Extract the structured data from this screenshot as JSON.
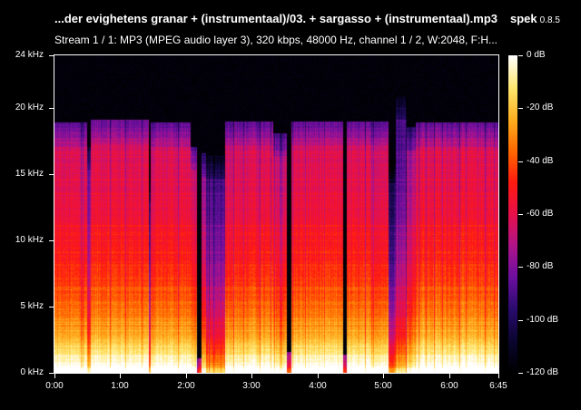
{
  "header": {
    "title": "...der evighetens granar + (instrumentaal)/03. + sargasso + (instrumentaal).mp3",
    "app_name": "spek",
    "app_version": "0.8.5",
    "subtitle": "Stream 1 / 1: MP3 (MPEG audio layer 3), 320 kbps, 48000 Hz, channel 1 / 2, W:2048, F:H..."
  },
  "y_axis": {
    "ticks": [
      {
        "label": "24 kHz",
        "value": 24
      },
      {
        "label": "20 kHz",
        "value": 20
      },
      {
        "label": "15 kHz",
        "value": 15
      },
      {
        "label": "10 kHz",
        "value": 10
      },
      {
        "label": "5 kHz",
        "value": 5
      },
      {
        "label": "0 kHz",
        "value": 0
      }
    ],
    "max_khz": 24
  },
  "x_axis": {
    "ticks": [
      {
        "label": "0:00",
        "seconds": 0
      },
      {
        "label": "1:00",
        "seconds": 60
      },
      {
        "label": "2:00",
        "seconds": 120
      },
      {
        "label": "3:00",
        "seconds": 180
      },
      {
        "label": "4:00",
        "seconds": 240
      },
      {
        "label": "5:00",
        "seconds": 300
      },
      {
        "label": "6:00",
        "seconds": 360
      },
      {
        "label": "6:45",
        "seconds": 405
      }
    ],
    "duration_seconds": 405
  },
  "colorbar": {
    "ticks": [
      {
        "label": "0 dB",
        "value": 0
      },
      {
        "label": "-20 dB",
        "value": -20
      },
      {
        "label": "-40 dB",
        "value": -40
      },
      {
        "label": "-60 dB",
        "value": -60
      },
      {
        "label": "-80 dB",
        "value": -80
      },
      {
        "label": "-100 dB",
        "value": -100
      },
      {
        "label": "-120 dB",
        "value": -120
      }
    ],
    "stops": [
      "#000000",
      "#0a0530",
      "#2a0b6e",
      "#6b0fa0",
      "#b0148a",
      "#e8104a",
      "#ff1a10",
      "#ff6a00",
      "#ffb020",
      "#ffe870",
      "#ffffff"
    ]
  },
  "spectrogram": {
    "segments": [
      {
        "start": 0,
        "end": 30,
        "cutoff": 18.3,
        "level": 0.62
      },
      {
        "start": 30,
        "end": 33,
        "cutoff": 16.5,
        "level": 0.45
      },
      {
        "start": 33,
        "end": 86,
        "cutoff": 18.5,
        "level": 0.64
      },
      {
        "start": 86,
        "end": 88,
        "cutoff": 14.0,
        "level": 0.3
      },
      {
        "start": 88,
        "end": 124,
        "cutoff": 18.3,
        "level": 0.63
      },
      {
        "start": 124,
        "end": 130,
        "cutoff": 16.5,
        "level": 0.58
      },
      {
        "start": 130,
        "end": 134,
        "cutoff": 0.5,
        "level": 0.22
      },
      {
        "start": 134,
        "end": 138,
        "cutoff": 16.0,
        "level": 0.48
      },
      {
        "start": 138,
        "end": 156,
        "cutoff": 15.8,
        "level": 0.38
      },
      {
        "start": 156,
        "end": 200,
        "cutoff": 18.4,
        "level": 0.62
      },
      {
        "start": 200,
        "end": 212,
        "cutoff": 17.5,
        "level": 0.6
      },
      {
        "start": 212,
        "end": 216,
        "cutoff": 1.0,
        "level": 0.25
      },
      {
        "start": 216,
        "end": 263,
        "cutoff": 18.4,
        "level": 0.63
      },
      {
        "start": 263,
        "end": 267,
        "cutoff": 0.8,
        "level": 0.25
      },
      {
        "start": 267,
        "end": 305,
        "cutoff": 18.4,
        "level": 0.62
      },
      {
        "start": 305,
        "end": 311,
        "cutoff": 15.5,
        "level": 0.3
      },
      {
        "start": 311,
        "end": 321,
        "cutoff": 20.3,
        "level": 0.42
      },
      {
        "start": 321,
        "end": 330,
        "cutoff": 18.0,
        "level": 0.55
      },
      {
        "start": 330,
        "end": 405,
        "cutoff": 18.3,
        "level": 0.64
      }
    ]
  }
}
